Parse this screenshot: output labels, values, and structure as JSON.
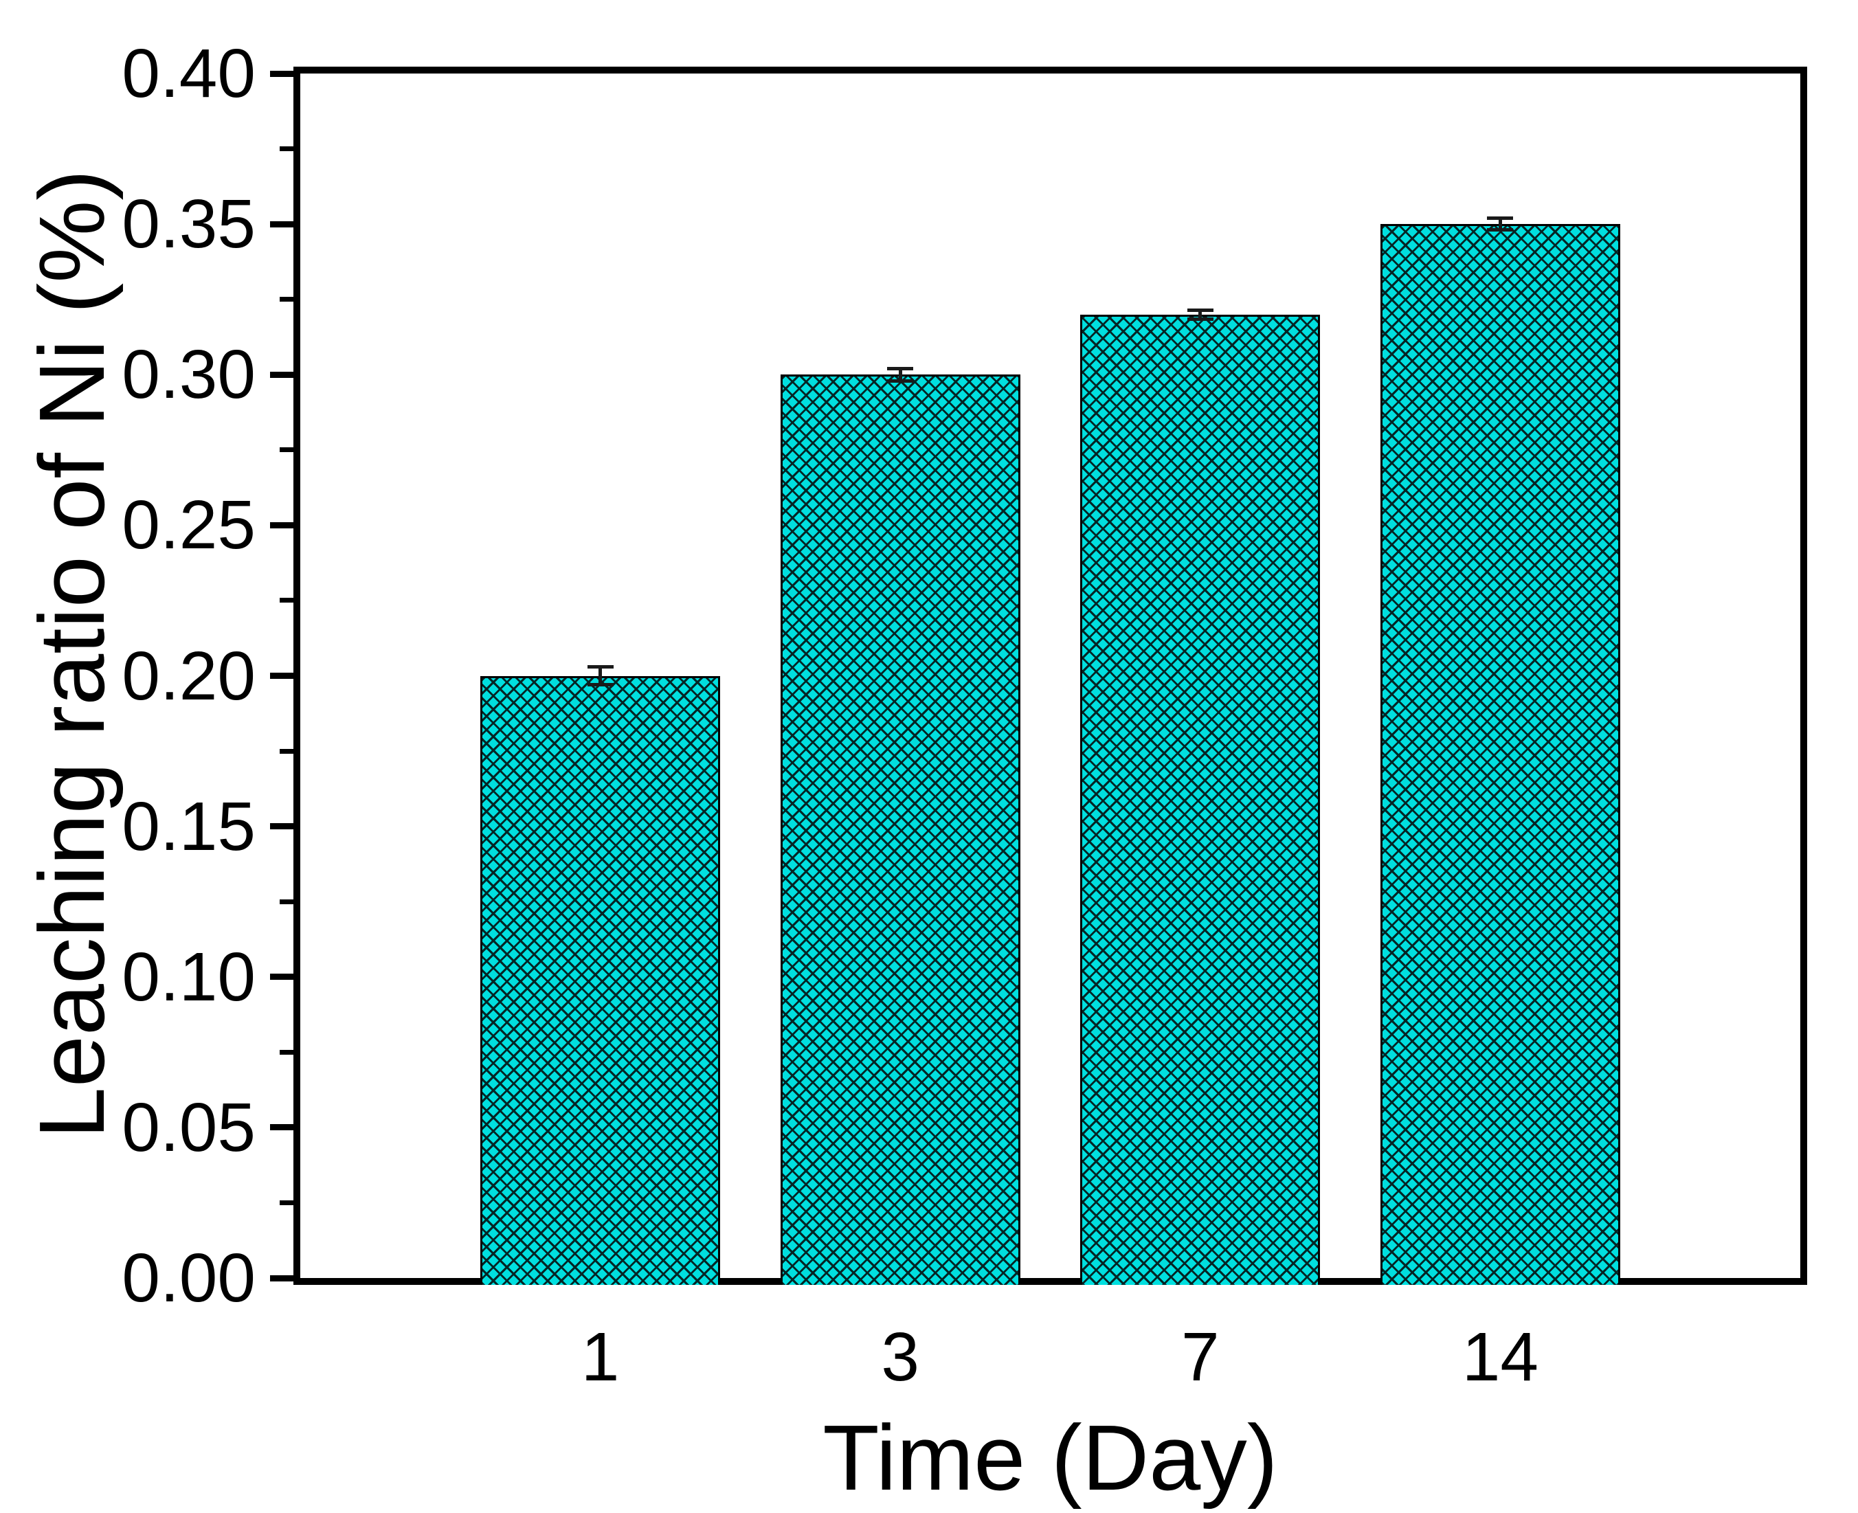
{
  "figure": {
    "background": "#ffffff"
  },
  "chart_data": {
    "type": "bar",
    "categories": [
      "1",
      "3",
      "7",
      "14"
    ],
    "values": [
      0.2,
      0.3,
      0.32,
      0.35
    ],
    "error_bars": [
      0.003,
      0.002,
      0.0015,
      0.002
    ],
    "title": "",
    "xlabel": "Time (Day)",
    "ylabel": "Leaching ratio of Ni (%)",
    "ylim": [
      0.0,
      0.4
    ],
    "ytick_step": 0.05,
    "ytick_labels": [
      "0.00",
      "0.05",
      "0.10",
      "0.15",
      "0.20",
      "0.25",
      "0.30",
      "0.35",
      "0.40"
    ],
    "yminor_step": 0.025,
    "bar_width_fraction": 0.8,
    "grid": false,
    "legend_position": "none",
    "frame": "full-box",
    "hatch_pattern": "diagonal-crosshatch",
    "colors": {
      "bar_fill": "#00dfdf",
      "hatch_line": "#052525",
      "axis": "#000000",
      "text": "#000000",
      "error_bar": "#1a1a1a"
    }
  }
}
